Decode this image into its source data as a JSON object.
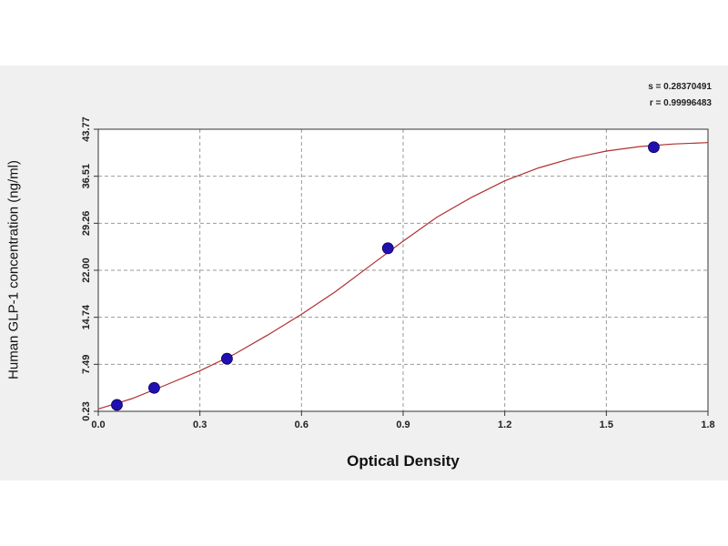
{
  "chart_data": {
    "type": "scatter",
    "xlabel": "Optical Density",
    "ylabel": "Human GLP-1 concentration (ng/ml)",
    "x_ticks": [
      "0.0",
      "0.3",
      "0.6",
      "0.9",
      "1.2",
      "1.5",
      "1.8"
    ],
    "y_ticks": [
      "0.23",
      "7.49",
      "14.74",
      "22.00",
      "29.26",
      "36.51",
      "43.77"
    ],
    "xlim": [
      0,
      1.8
    ],
    "ylim": [
      0.23,
      43.77
    ],
    "grid": true,
    "stats": {
      "s": "s = 0.28370491",
      "r": "r = 0.99996483"
    },
    "colors": {
      "curve": "#b03030",
      "points": "#2010b0",
      "grid": "#999999",
      "panel": "#f0f0f0"
    },
    "points": [
      {
        "x": 0.055,
        "y": 1.22
      },
      {
        "x": 0.165,
        "y": 3.85
      },
      {
        "x": 0.38,
        "y": 8.35
      },
      {
        "x": 0.855,
        "y": 25.4
      },
      {
        "x": 1.64,
        "y": 41.0
      }
    ],
    "curve": [
      {
        "x": 0.0,
        "y": 0.6
      },
      {
        "x": 0.1,
        "y": 2.2
      },
      {
        "x": 0.2,
        "y": 4.3
      },
      {
        "x": 0.3,
        "y": 6.5
      },
      {
        "x": 0.4,
        "y": 9.0
      },
      {
        "x": 0.5,
        "y": 12.0
      },
      {
        "x": 0.6,
        "y": 15.2
      },
      {
        "x": 0.7,
        "y": 18.7
      },
      {
        "x": 0.8,
        "y": 22.6
      },
      {
        "x": 0.9,
        "y": 26.5
      },
      {
        "x": 1.0,
        "y": 30.2
      },
      {
        "x": 1.1,
        "y": 33.2
      },
      {
        "x": 1.2,
        "y": 35.8
      },
      {
        "x": 1.3,
        "y": 37.8
      },
      {
        "x": 1.4,
        "y": 39.3
      },
      {
        "x": 1.5,
        "y": 40.4
      },
      {
        "x": 1.6,
        "y": 41.1
      },
      {
        "x": 1.7,
        "y": 41.5
      },
      {
        "x": 1.8,
        "y": 41.7
      }
    ]
  }
}
